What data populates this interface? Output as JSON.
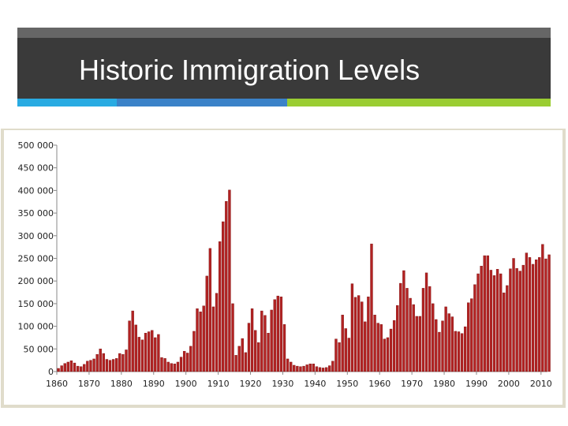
{
  "slide": {
    "title": "Historic Immigration Levels"
  },
  "colors": {
    "title_bar": "#3a3a3a",
    "title_bar_stripe": "#666666",
    "accent_1": "#29abe2",
    "accent_2": "#3b82c8",
    "accent_3": "#9acd32",
    "frame_border": "#e0dccb",
    "bar_fill": "#b22222",
    "bar_outline": "#7a1010"
  },
  "chart_data": {
    "type": "bar",
    "title": "",
    "xlabel": "",
    "ylabel": "",
    "ylim": [
      0,
      500000
    ],
    "xlim": [
      1860,
      2012
    ],
    "grid": false,
    "y_ticks": [
      "0",
      "50 000",
      "100 000",
      "150 000",
      "200 000",
      "250 000",
      "300 000",
      "350 000",
      "400 000",
      "450 000",
      "500 000"
    ],
    "x_ticks": [
      "1860",
      "1870",
      "1880",
      "1890",
      "1900",
      "1910",
      "1920",
      "1930",
      "1940",
      "1950",
      "1960",
      "1970",
      "1980",
      "1990",
      "2000",
      "2010"
    ],
    "series": [
      {
        "start_year": 1860,
        "values": [
          7000,
          13000,
          18000,
          21000,
          24000,
          19000,
          12000,
          11000,
          16000,
          23000,
          25000,
          28000,
          38000,
          50000,
          40000,
          27000,
          25000,
          27000,
          29000,
          40000,
          38000,
          48000,
          112000,
          134000,
          103000,
          76000,
          70000,
          85000,
          88000,
          91000,
          75000,
          82000,
          31000,
          29000,
          21000,
          18000,
          17000,
          21000,
          32000,
          45000,
          41000,
          56000,
          89000,
          139000,
          132000,
          145000,
          211000,
          272000,
          143000,
          173000,
          287000,
          331000,
          376000,
          401000,
          150000,
          36000,
          56000,
          73000,
          42000,
          107000,
          139000,
          91000,
          64000,
          134000,
          124000,
          85000,
          136000,
          159000,
          167000,
          165000,
          104000,
          28000,
          21000,
          14000,
          12000,
          11000,
          12000,
          15000,
          17000,
          17000,
          11000,
          9000,
          8000,
          9000,
          13000,
          23000,
          72000,
          64000,
          125000,
          95000,
          74000,
          194000,
          164000,
          168000,
          154000,
          110000,
          165000,
          282000,
          125000,
          107000,
          104000,
          72000,
          75000,
          94000,
          113000,
          146000,
          195000,
          223000,
          184000,
          162000,
          148000,
          122000,
          122000,
          184000,
          218000,
          188000,
          150000,
          115000,
          87000,
          112000,
          143000,
          128000,
          121000,
          89000,
          88000,
          84000,
          99000,
          152000,
          161000,
          192000,
          216000,
          233000,
          256000,
          256000,
          224000,
          212000,
          226000,
          216000,
          174000,
          190000,
          227000,
          250000,
          228000,
          222000,
          235000,
          262000,
          252000,
          237000,
          247000,
          252000,
          281000,
          249000,
          258000
        ]
      }
    ]
  }
}
